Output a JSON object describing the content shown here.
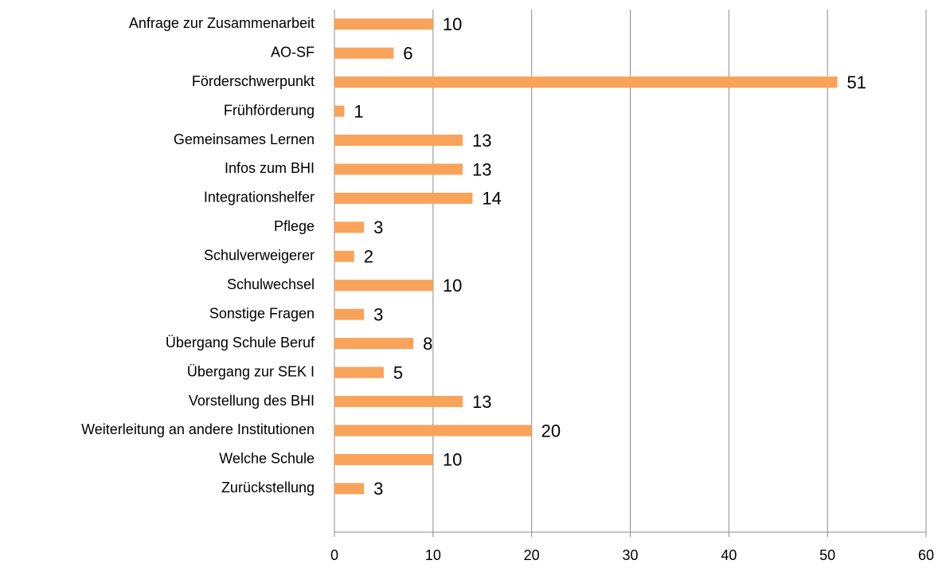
{
  "chart_data": {
    "type": "bar",
    "orientation": "horizontal",
    "categories": [
      "Anfrage zur Zusammenarbeit",
      "AO-SF",
      "Förderschwerpunkt",
      "Frühförderung",
      "Gemeinsames Lernen",
      "Infos zum BHI",
      "Integrationshelfer",
      "Pflege",
      "Schulverweigerer",
      "Schulwechsel",
      "Sonstige Fragen",
      "Übergang Schule Beruf",
      "Übergang zur SEK I",
      "Vorstellung des BHI",
      "Weiterleitung an andere Institutionen",
      "Welche Schule",
      "Zurückstellung",
      null
    ],
    "values": [
      10,
      6,
      51,
      1,
      13,
      13,
      14,
      3,
      2,
      10,
      3,
      8,
      5,
      13,
      20,
      10,
      3,
      null
    ],
    "color": "#f9a35a",
    "xlim": [
      0,
      60
    ],
    "xticks": [
      0,
      10,
      20,
      30,
      40,
      50,
      60
    ],
    "grid": true
  }
}
